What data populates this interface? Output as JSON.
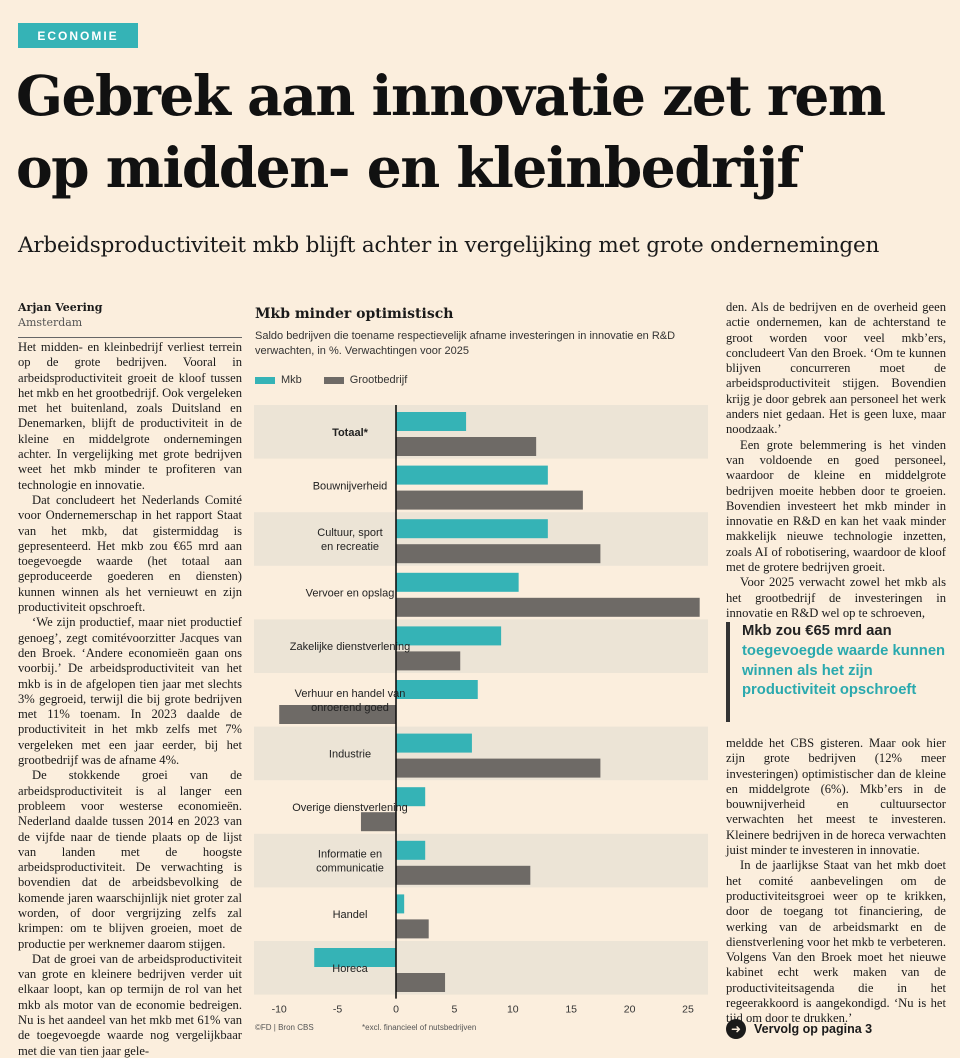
{
  "section_tag": "ECONOMIE",
  "headline_line1": "Gebrek aan innovatie zet rem",
  "headline_line2": "op midden- en kleinbedrijf",
  "subheadline": "Arbeidsproductiviteit mkb blijft achter in vergelijking met grote ondernemingen",
  "author": "Arjan Veering",
  "location": "Amsterdam",
  "column1": [
    "Het midden- en kleinbedrijf verliest terrein op de grote bedrijven. Vooral in arbeidsproductiviteit groeit de kloof tussen het mkb en het grootbedrijf. Ook vergeleken met het buitenland, zoals Duitsland en Denemarken, blijft de productiviteit in de kleine en middelgrote ondernemingen achter. In vergelijking met grote bedrijven weet het mkb minder te profiteren van technologie en innovatie.",
    "Dat concludeert het Nederlands Comité voor Ondernemerschap in het rapport Staat van het mkb, dat gistermiddag is gepresenteerd. Het mkb zou €65 mrd aan toegevoegde waarde (het totaal aan geproduceerde goederen en diensten) kunnen winnen als het vernieuwt en zijn productiviteit opschroeft.",
    "‘We zijn productief, maar niet productief genoeg’, zegt comitévoorzitter Jacques van den Broek. ‘Andere economieën gaan ons voorbij.’ De arbeidsproductiviteit van het mkb is in de afgelopen tien jaar met slechts 3% gegroeid, terwijl die bij grote bedrijven met 11% toenam. In 2023 daalde de productiviteit in het mkb zelfs met 7% vergeleken met een jaar eerder, bij het grootbedrijf was de afname 4%.",
    "De stokkende groei van de arbeidsproductiviteit is al langer een probleem voor westerse economieën. Nederland daalde tussen 2014 en 2023 van de vijfde naar de tiende plaats op de lijst van landen met de hoogste arbeidsproductiviteit. De verwachting is bovendien dat de arbeidsbevolking de komende jaren waarschijnlijk niet groter zal worden, of door vergrijzing zelfs zal krimpen: om te blijven groeien, moet de productie per werknemer daarom stijgen.",
    "Dat de groei van de arbeidsproductiviteit van grote en kleinere bedrijven verder uit elkaar loopt, kan op termijn de rol van het mkb als motor van de economie bedreigen. Nu is het aandeel van het mkb met 61% van de toegevoegde waarde nog vergelijkbaar met die van tien jaar gele-"
  ],
  "column3a": [
    "den. Als de bedrijven en de overheid geen actie ondernemen, kan de achterstand te groot worden voor veel mkb’ers, concludeert Van den Broek. ‘Om te kunnen blijven concurreren moet de arbeidsproductiviteit stijgen. Bovendien krijg je door gebrek aan personeel het werk anders niet gedaan. Het is geen luxe, maar noodzaak.’",
    "Een grote belemmering is het vinden van voldoende en goed personeel, waardoor de kleine en middelgrote bedrijven moeite hebben door te groeien. Bovendien investeert het mkb minder in innovatie en R&D en kan het vaak minder makkelijk nieuwe technologie inzetten, zoals AI of robotisering, waardoor de kloof met de grotere bedrijven groeit.",
    "Voor 2025 verwacht zowel het mkb als het grootbedrijf de investeringen in innovatie en R&D wel op te schroeven,"
  ],
  "quote": {
    "dark": "Mkb zou €65 mrd aan",
    "teal": "toegevoegde waarde kunnen winnen als het zijn productiviteit opschroeft"
  },
  "column3b": [
    "meldde het CBS gisteren. Maar ook hier zijn grote bedrijven (12% meer investeringen) optimistischer dan de kleine en middelgrote (6%). Mkb’ers in de bouwnijverheid en cultuursector verwachten het meest te investeren. Kleinere bedrijven in de horeca verwachten juist minder te investeren in innovatie.",
    "In de jaarlijkse Staat van het mkb doet het comité aanbevelingen om de productiviteitsgroei weer op te krikken, door de toegang tot financiering, de werking van de arbeidsmarkt en de dienstverlening voor het mkb te verbeteren. Volgens Van den Broek moet het nieuwe kabinet echt werk maken van de productiviteitsagenda die in het regeerakkoord is aangekondigd. ‘Nu is het tijd om door te drukken.’"
  ],
  "continue_label": "Vervolg op pagina 3",
  "chart_data": {
    "type": "bar",
    "orientation": "horizontal",
    "title": "Mkb minder optimistisch",
    "subtitle": "Saldo bedrijven die toename respectievelijk afname investeringen in innovatie en R&D verwachten, in %. Verwachtingen voor 2025",
    "categories": [
      [
        "Totaal*"
      ],
      [
        "Bouwnijverheid"
      ],
      [
        "Cultuur, sport",
        "en recreatie"
      ],
      [
        "Vervoer en opslag"
      ],
      [
        "Zakelijke dienstverlening"
      ],
      [
        "Verhuur en handel van",
        "onroerend goed"
      ],
      [
        "Industrie"
      ],
      [
        "Overige dienstverlening"
      ],
      [
        "Informatie en",
        "communicatie"
      ],
      [
        "Handel"
      ],
      [
        "Horeca"
      ]
    ],
    "series": [
      {
        "name": "Mkb",
        "color": "#35b3b6",
        "values": [
          6,
          13,
          13,
          10.5,
          9,
          7,
          6.5,
          2.5,
          2.5,
          0.7,
          -7
        ]
      },
      {
        "name": "Grootbedrijf",
        "color": "#6e6a66",
        "values": [
          12,
          16,
          17.5,
          26,
          5.5,
          -10,
          17.5,
          -3,
          11.5,
          2.8,
          4.2
        ]
      }
    ],
    "xlim": [
      -11,
      27
    ],
    "xticks": [
      -10,
      -5,
      0,
      5,
      10,
      15,
      20,
      25
    ],
    "source": "©FD | Bron CBS",
    "footnote": "*excl. financieel of nutsbedrijven"
  }
}
